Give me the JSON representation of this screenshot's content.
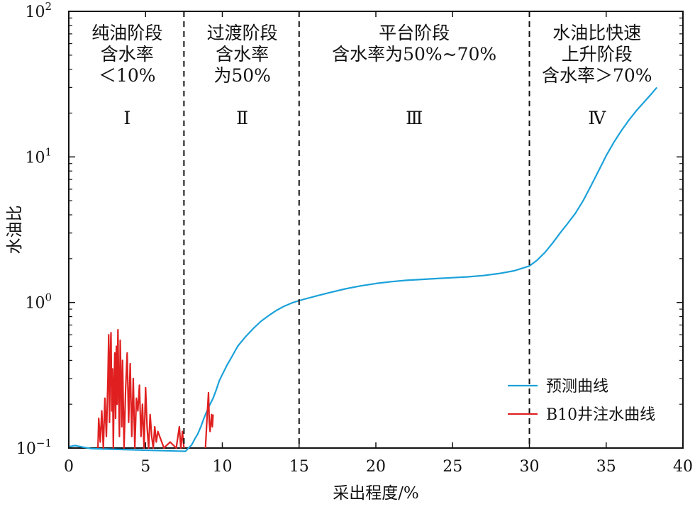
{
  "chart_data": {
    "type": "line",
    "xlabel": "采出程度/%",
    "ylabel": "水油比",
    "y_scale": "log",
    "xlim": [
      0,
      40
    ],
    "ylim": [
      0.1,
      100
    ],
    "x_ticks": [
      0,
      5,
      10,
      15,
      20,
      25,
      30,
      35,
      40
    ],
    "x_tick_labels": [
      "0",
      "5",
      "10",
      "15",
      "20",
      "25",
      "30",
      "35",
      "40"
    ],
    "y_ticks": [
      {
        "value": 0.1,
        "base": "10",
        "exp": "−1"
      },
      {
        "value": 1,
        "base": "10",
        "exp": "0"
      },
      {
        "value": 10,
        "base": "10",
        "exp": "1"
      },
      {
        "value": 100,
        "base": "10",
        "exp": "2"
      }
    ],
    "stage_boundaries": [
      7.5,
      15,
      30
    ],
    "stages": [
      {
        "x_center": 3.8,
        "lines": [
          "纯油阶段",
          "含水率",
          "＜10%"
        ],
        "roman": "Ⅰ"
      },
      {
        "x_center": 11.3,
        "lines": [
          "过渡阶段",
          "含水率",
          "为50%"
        ],
        "roman": "Ⅱ"
      },
      {
        "x_center": 22.5,
        "lines": [
          "平台阶段",
          "含水率为50%~70%"
        ],
        "roman": "Ⅲ"
      },
      {
        "x_center": 34.4,
        "lines": [
          "水油比快速",
          "上升阶段",
          "含水率＞70%"
        ],
        "roman": "Ⅳ"
      }
    ],
    "legend_position": "bottom-right",
    "series": [
      {
        "name": "预测曲线",
        "color": "#1ba1d9",
        "points": [
          [
            0.0,
            0.102
          ],
          [
            0.4,
            0.104
          ],
          [
            1.0,
            0.101
          ],
          [
            1.5,
            0.099
          ],
          [
            7.6,
            0.095
          ],
          [
            7.8,
            0.1
          ],
          [
            8.0,
            0.105
          ],
          [
            8.2,
            0.115
          ],
          [
            8.4,
            0.125
          ],
          [
            8.6,
            0.14
          ],
          [
            8.8,
            0.16
          ],
          [
            9.0,
            0.18
          ],
          [
            9.2,
            0.2
          ],
          [
            9.4,
            0.22
          ],
          [
            9.6,
            0.25
          ],
          [
            9.8,
            0.29
          ],
          [
            10.0,
            0.32
          ],
          [
            10.3,
            0.37
          ],
          [
            10.6,
            0.42
          ],
          [
            11.0,
            0.5
          ],
          [
            11.5,
            0.58
          ],
          [
            12.0,
            0.66
          ],
          [
            12.5,
            0.74
          ],
          [
            13.0,
            0.81
          ],
          [
            13.5,
            0.88
          ],
          [
            14.0,
            0.94
          ],
          [
            14.5,
            0.99
          ],
          [
            15.0,
            1.03
          ],
          [
            16.0,
            1.1
          ],
          [
            17.0,
            1.17
          ],
          [
            18.0,
            1.24
          ],
          [
            19.0,
            1.3
          ],
          [
            20.0,
            1.35
          ],
          [
            21.0,
            1.39
          ],
          [
            22.0,
            1.42
          ],
          [
            23.0,
            1.44
          ],
          [
            24.0,
            1.46
          ],
          [
            25.0,
            1.48
          ],
          [
            26.0,
            1.5
          ],
          [
            27.0,
            1.53
          ],
          [
            28.0,
            1.58
          ],
          [
            29.0,
            1.65
          ],
          [
            30.0,
            1.78
          ],
          [
            30.5,
            1.95
          ],
          [
            31.0,
            2.2
          ],
          [
            31.5,
            2.55
          ],
          [
            32.0,
            3.0
          ],
          [
            32.5,
            3.5
          ],
          [
            33.0,
            4.1
          ],
          [
            33.5,
            5.0
          ],
          [
            34.0,
            6.3
          ],
          [
            34.5,
            8.0
          ],
          [
            35.0,
            10.2
          ],
          [
            35.5,
            12.6
          ],
          [
            36.0,
            15.2
          ],
          [
            36.5,
            18.0
          ],
          [
            37.0,
            21.0
          ],
          [
            37.5,
            24.0
          ],
          [
            38.0,
            27.5
          ],
          [
            38.3,
            30.0
          ]
        ]
      },
      {
        "name": "B10井注水曲线",
        "color": "#e02020",
        "points": [
          [
            1.9,
            0.1
          ],
          [
            1.95,
            0.16
          ],
          [
            2.05,
            0.11
          ],
          [
            2.15,
            0.18
          ],
          [
            2.25,
            0.1
          ],
          [
            2.35,
            0.22
          ],
          [
            2.45,
            0.12
          ],
          [
            2.55,
            0.3
          ],
          [
            2.6,
            0.6
          ],
          [
            2.65,
            0.15
          ],
          [
            2.7,
            0.42
          ],
          [
            2.75,
            0.62
          ],
          [
            2.8,
            0.18
          ],
          [
            2.85,
            0.35
          ],
          [
            2.9,
            0.1
          ],
          [
            2.95,
            0.28
          ],
          [
            3.0,
            0.45
          ],
          [
            3.05,
            0.16
          ],
          [
            3.1,
            0.5
          ],
          [
            3.15,
            0.2
          ],
          [
            3.2,
            0.65
          ],
          [
            3.25,
            0.25
          ],
          [
            3.3,
            0.12
          ],
          [
            3.35,
            0.55
          ],
          [
            3.4,
            0.3
          ],
          [
            3.45,
            0.14
          ],
          [
            3.5,
            0.4
          ],
          [
            3.6,
            0.1
          ],
          [
            3.7,
            0.25
          ],
          [
            3.8,
            0.45
          ],
          [
            3.9,
            0.15
          ],
          [
            4.0,
            0.38
          ],
          [
            4.1,
            0.12
          ],
          [
            4.2,
            0.3
          ],
          [
            4.3,
            0.1
          ],
          [
            4.4,
            0.22
          ],
          [
            4.5,
            0.18
          ],
          [
            4.6,
            0.27
          ],
          [
            4.7,
            0.12
          ],
          [
            4.8,
            0.2
          ],
          [
            4.9,
            0.1
          ],
          [
            5.0,
            0.26
          ],
          [
            5.1,
            0.14
          ],
          [
            5.2,
            0.1
          ],
          [
            5.3,
            0.17
          ],
          [
            5.4,
            0.12
          ],
          [
            5.5,
            0.1
          ],
          [
            5.6,
            0.14
          ],
          [
            5.7,
            0.11
          ],
          [
            5.8,
            0.13
          ],
          [
            6.2,
            0.1
          ],
          [
            6.6,
            0.11
          ],
          [
            7.0,
            0.1
          ],
          [
            7.2,
            0.14
          ],
          [
            7.3,
            0.1
          ],
          [
            7.4,
            0.13
          ],
          [
            7.5,
            0.1
          ],
          [
            null,
            null
          ],
          [
            8.9,
            0.1
          ],
          [
            9.0,
            0.16
          ],
          [
            9.1,
            0.24
          ],
          [
            9.15,
            0.15
          ],
          [
            9.2,
            0.13
          ],
          [
            9.25,
            0.15
          ],
          [
            9.3,
            0.17
          ],
          [
            9.35,
            0.14
          ],
          [
            9.4,
            0.17
          ]
        ]
      }
    ]
  }
}
